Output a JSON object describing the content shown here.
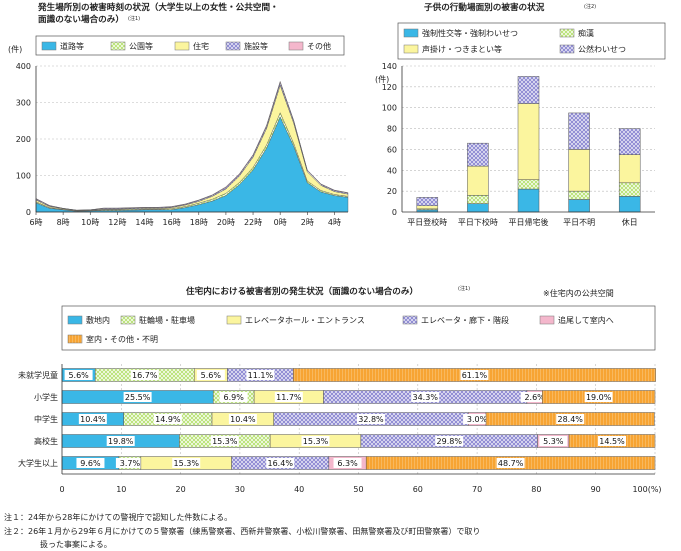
{
  "chart_data": [
    {
      "type": "area",
      "title": "発生場所別の被害時刻の状況（大学生以上の女性・公共空間・面識のない場合のみ）",
      "title_line1": "発生場所別の被害時刻の状況（大学生以上の女性・公共空間・",
      "title_line2": "面識のない場合のみ）",
      "note_mark": "(注1)",
      "ylabel": "(件)",
      "ylim": [
        0,
        400
      ],
      "yticks": [
        0,
        100,
        200,
        300,
        400
      ],
      "x": [
        "6時",
        "7時",
        "8時",
        "9時",
        "10時",
        "11時",
        "12時",
        "13時",
        "14時",
        "15時",
        "16時",
        "17時",
        "18時",
        "19時",
        "20時",
        "21時",
        "22時",
        "23時",
        "0時",
        "1時",
        "2時",
        "3時",
        "4時",
        "5時"
      ],
      "xtick_labels": [
        "6時",
        "8時",
        "10時",
        "12時",
        "14時",
        "16時",
        "18時",
        "20時",
        "22時",
        "0時",
        "2時",
        "4時"
      ],
      "stacked": true,
      "legend_position": "top",
      "series": [
        {
          "name": "道路等",
          "color": "#3ab7e6",
          "values": [
            25,
            10,
            6,
            2,
            3,
            4,
            4,
            5,
            6,
            6,
            6,
            12,
            20,
            30,
            45,
            75,
            115,
            175,
            260,
            180,
            80,
            55,
            45,
            40
          ]
        },
        {
          "name": "公園等",
          "color": "#b4e06c",
          "values": [
            3,
            2,
            1,
            1,
            1,
            2,
            2,
            2,
            2,
            2,
            3,
            3,
            4,
            5,
            6,
            6,
            7,
            9,
            12,
            8,
            5,
            4,
            3,
            3
          ]
        },
        {
          "name": "住宅",
          "color": "#fbf59e",
          "values": [
            5,
            3,
            2,
            1,
            1,
            2,
            2,
            2,
            2,
            2,
            3,
            4,
            5,
            8,
            12,
            18,
            28,
            45,
            75,
            55,
            25,
            14,
            8,
            6
          ]
        },
        {
          "name": "施設等",
          "color": "#8a86d1",
          "values": [
            3,
            2,
            1,
            1,
            1,
            2,
            2,
            2,
            2,
            2,
            2,
            2,
            3,
            3,
            4,
            4,
            5,
            6,
            8,
            6,
            4,
            3,
            3,
            3
          ]
        },
        {
          "name": "その他",
          "color": "#f4b7cc",
          "values": [
            1,
            1,
            0,
            0,
            0,
            1,
            1,
            1,
            1,
            1,
            1,
            1,
            1,
            1,
            2,
            2,
            2,
            3,
            3,
            2,
            1,
            1,
            1,
            1
          ]
        }
      ]
    },
    {
      "type": "bar",
      "title": "子供の行動場面別の被害の状況",
      "note_mark": "(注2)",
      "ylabel": "(件)",
      "ylim": [
        0,
        140
      ],
      "yticks": [
        0,
        20,
        40,
        60,
        80,
        100,
        120,
        140
      ],
      "categories": [
        "平日登校時",
        "平日下校時",
        "平日帰宅後",
        "平日不明",
        "休日"
      ],
      "stacked": true,
      "legend_position": "top",
      "series": [
        {
          "name": "強制性交等・強制わいせつ",
          "color": "#3ab7e6",
          "values": [
            2,
            8,
            22,
            12,
            15
          ]
        },
        {
          "name": "痴漢",
          "color": "#b4e06c",
          "values": [
            1,
            8,
            9,
            8,
            13
          ]
        },
        {
          "name": "声掛け・つきまとい等",
          "color": "#fbf59e",
          "values": [
            3,
            28,
            73,
            40,
            27
          ]
        },
        {
          "name": "公然わいせつ",
          "color": "#8a86d1",
          "values": [
            8,
            22,
            26,
            35,
            25
          ]
        }
      ]
    },
    {
      "type": "bar",
      "orientation": "horizontal",
      "stacked": "percent",
      "title": "住宅内における被害者別の発生状況（面識のない場合のみ）",
      "note_mark": "(注1)",
      "legend_note": "※住宅内の公共空間",
      "xlim": [
        0,
        100
      ],
      "xticks": [
        "0",
        "10",
        "20",
        "30",
        "40",
        "50",
        "60",
        "70",
        "80",
        "90",
        "100(%)"
      ],
      "categories": [
        "未就学児童",
        "小学生",
        "中学生",
        "高校生",
        "大学生以上"
      ],
      "legend_position": "top",
      "series": [
        {
          "name": "敷地内",
          "color": "#3ab7e6",
          "values": [
            5.6,
            25.5,
            10.4,
            19.8,
            9.6
          ],
          "labels": [
            "5.6%",
            "25.5%",
            "10.4%",
            "19.8%",
            "9.6%"
          ]
        },
        {
          "name": "駐輪場・駐車場",
          "color": "#b4e06c",
          "values": [
            16.7,
            6.9,
            14.9,
            15.3,
            3.7
          ],
          "labels": [
            "16.7%",
            "6.9%",
            "14.9%",
            "15.3%",
            "3.7%"
          ]
        },
        {
          "name": "エレベータホール・エントランス",
          "color": "#fbf59e",
          "values": [
            5.6,
            11.7,
            10.4,
            15.3,
            15.3
          ],
          "labels": [
            "5.6%",
            "11.7%",
            "10.4%",
            "15.3%",
            "15.3%"
          ]
        },
        {
          "name": "エレベータ・廊下・階段",
          "color": "#8a86d1",
          "values": [
            11.1,
            34.3,
            32.8,
            29.8,
            16.4
          ],
          "labels": [
            "11.1%",
            "34.3%",
            "32.8%",
            "29.8%",
            "16.4%"
          ]
        },
        {
          "name": "追尾して室内へ",
          "color": "#f4b7cc",
          "values": [
            0,
            2.6,
            3.0,
            5.3,
            6.3
          ],
          "labels": [
            "",
            "2.6%",
            "3.0%",
            "5.3%",
            "6.3%"
          ]
        },
        {
          "name": "室内・その他・不明",
          "color": "#f7a433",
          "values": [
            61.1,
            19.0,
            28.4,
            14.5,
            48.7
          ],
          "labels": [
            "61.1%",
            "19.0%",
            "28.4%",
            "14.5%",
            "48.7%"
          ]
        }
      ]
    }
  ],
  "notes": [
    "注１：24年から28年にかけての警視庁で認知した件数による。",
    "注２：26年１月から29年６月にかけての５警察署（練馬警察署、西新井警察署、小松川警察署、田無警察署及び町田警察署）で取り",
    "扱った事案による。"
  ]
}
